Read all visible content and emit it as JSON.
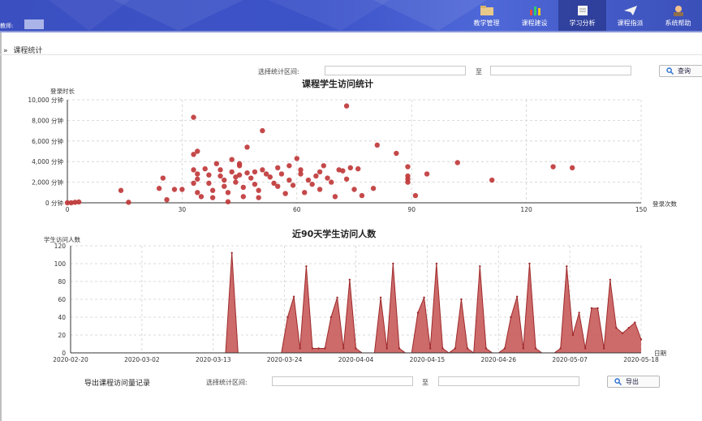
{
  "header": {
    "teacher_label": "教师:",
    "nav": [
      {
        "label": "教学管理",
        "icon": "folder-icon"
      },
      {
        "label": "课程建设",
        "icon": "bar-chart-icon"
      },
      {
        "label": "学习分析",
        "icon": "document-icon",
        "active": true
      },
      {
        "label": "课程指派",
        "icon": "paper-plane-icon"
      },
      {
        "label": "系统帮助",
        "icon": "user-icon"
      }
    ]
  },
  "breadcrumb": {
    "arrow": "»",
    "text": "课程统计"
  },
  "filter_top": {
    "label": "选择统计区间:",
    "to": "至",
    "value_from": "",
    "value_to": "",
    "button": "查询"
  },
  "export_filter": {
    "title": "导出课程访问量记录",
    "label": "选择统计区间:",
    "to": "至",
    "value_from": "",
    "value_to": "",
    "button": "导出"
  },
  "colors": {
    "accent": "#c0393b",
    "header": "#3c53c8",
    "fill": "#c85a5a"
  },
  "chart_data": [
    {
      "type": "scatter",
      "title": "课程学生访问统计",
      "ylabel": "登录时长",
      "xlabel": "登录次数",
      "xlim": [
        0,
        150
      ],
      "ylim": [
        0,
        10000
      ],
      "xticks": [
        "0",
        "30",
        "60",
        "90",
        "120",
        "150"
      ],
      "yticks": [
        "0 分钟",
        "2,000 分钟",
        "4,000 分钟",
        "6,000 分钟",
        "8,000 分钟",
        "10,000 分钟"
      ],
      "grid": true,
      "points": [
        [
          0,
          0
        ],
        [
          1,
          0
        ],
        [
          2,
          50
        ],
        [
          3,
          80
        ],
        [
          14,
          1200
        ],
        [
          16,
          50
        ],
        [
          24,
          1400
        ],
        [
          25,
          2400
        ],
        [
          26,
          300
        ],
        [
          28,
          1300
        ],
        [
          30,
          1300
        ],
        [
          33,
          8300
        ],
        [
          33,
          4700
        ],
        [
          34,
          5000
        ],
        [
          33,
          3200
        ],
        [
          34,
          2800
        ],
        [
          34,
          2300
        ],
        [
          33,
          1900
        ],
        [
          34,
          1000
        ],
        [
          35,
          600
        ],
        [
          36,
          3300
        ],
        [
          37,
          2700
        ],
        [
          37,
          1900
        ],
        [
          38,
          1200
        ],
        [
          38,
          500
        ],
        [
          39,
          3800
        ],
        [
          40,
          3200
        ],
        [
          40,
          2600
        ],
        [
          41,
          2200
        ],
        [
          41,
          1600
        ],
        [
          42,
          1000
        ],
        [
          42,
          100
        ],
        [
          43,
          4200
        ],
        [
          43,
          3000
        ],
        [
          44,
          2500
        ],
        [
          44,
          2000
        ],
        [
          45,
          3800
        ],
        [
          45,
          3600
        ],
        [
          45,
          2700
        ],
        [
          46,
          1500
        ],
        [
          46,
          600
        ],
        [
          47,
          5400
        ],
        [
          47,
          2900
        ],
        [
          48,
          2400
        ],
        [
          49,
          3000
        ],
        [
          49,
          1800
        ],
        [
          50,
          1200
        ],
        [
          50,
          500
        ],
        [
          51,
          7000
        ],
        [
          51,
          3200
        ],
        [
          52,
          2800
        ],
        [
          53,
          2500
        ],
        [
          54,
          1900
        ],
        [
          55,
          3400
        ],
        [
          55,
          1600
        ],
        [
          56,
          2800
        ],
        [
          57,
          900
        ],
        [
          58,
          3600
        ],
        [
          58,
          2200
        ],
        [
          59,
          1700
        ],
        [
          60,
          4300
        ],
        [
          61,
          2800
        ],
        [
          61,
          3200
        ],
        [
          62,
          1000
        ],
        [
          63,
          2200
        ],
        [
          64,
          1800
        ],
        [
          65,
          2600
        ],
        [
          66,
          3000
        ],
        [
          66,
          1300
        ],
        [
          67,
          3600
        ],
        [
          68,
          2400
        ],
        [
          69,
          2000
        ],
        [
          70,
          600
        ],
        [
          71,
          3200
        ],
        [
          72,
          3100
        ],
        [
          73,
          9400
        ],
        [
          73,
          2300
        ],
        [
          74,
          3400
        ],
        [
          75,
          1300
        ],
        [
          76,
          3300
        ],
        [
          77,
          700
        ],
        [
          80,
          1400
        ],
        [
          81,
          5600
        ],
        [
          86,
          4800
        ],
        [
          89,
          3500
        ],
        [
          89,
          2600
        ],
        [
          89,
          2300
        ],
        [
          89,
          2000
        ],
        [
          91,
          700
        ],
        [
          94,
          2800
        ],
        [
          102,
          3900
        ],
        [
          111,
          2200
        ],
        [
          127,
          3500
        ],
        [
          132,
          3400
        ]
      ]
    },
    {
      "type": "area",
      "title": "近90天学生访问人数",
      "ylabel": "学生访问人数",
      "xlabel": "日期",
      "ylim": [
        0,
        120
      ],
      "yticks": [
        "0",
        "20",
        "40",
        "60",
        "80",
        "100",
        "120"
      ],
      "xticks": [
        "2020-02-20",
        "2020-03-02",
        "2020-03-13",
        "2020-03-24",
        "2020-04-04",
        "2020-04-15",
        "2020-04-26",
        "2020-05-07",
        "2020-05-18"
      ],
      "grid": true,
      "values": [
        0,
        0,
        0,
        0,
        0,
        0,
        0,
        0,
        0,
        0,
        0,
        0,
        0,
        0,
        0,
        0,
        0,
        0,
        0,
        0,
        0,
        0,
        0,
        0,
        0,
        0,
        112,
        0,
        0,
        0,
        0,
        0,
        0,
        0,
        0,
        40,
        63,
        5,
        97,
        5,
        5,
        5,
        40,
        62,
        5,
        82,
        5,
        0,
        0,
        0,
        62,
        5,
        100,
        5,
        0,
        0,
        45,
        62,
        5,
        100,
        5,
        0,
        5,
        60,
        5,
        0,
        97,
        5,
        0,
        0,
        5,
        40,
        63,
        5,
        100,
        5,
        0,
        0,
        0,
        5,
        97,
        20,
        45,
        5,
        50,
        50,
        5,
        82,
        28,
        22,
        28,
        34,
        15
      ]
    }
  ]
}
